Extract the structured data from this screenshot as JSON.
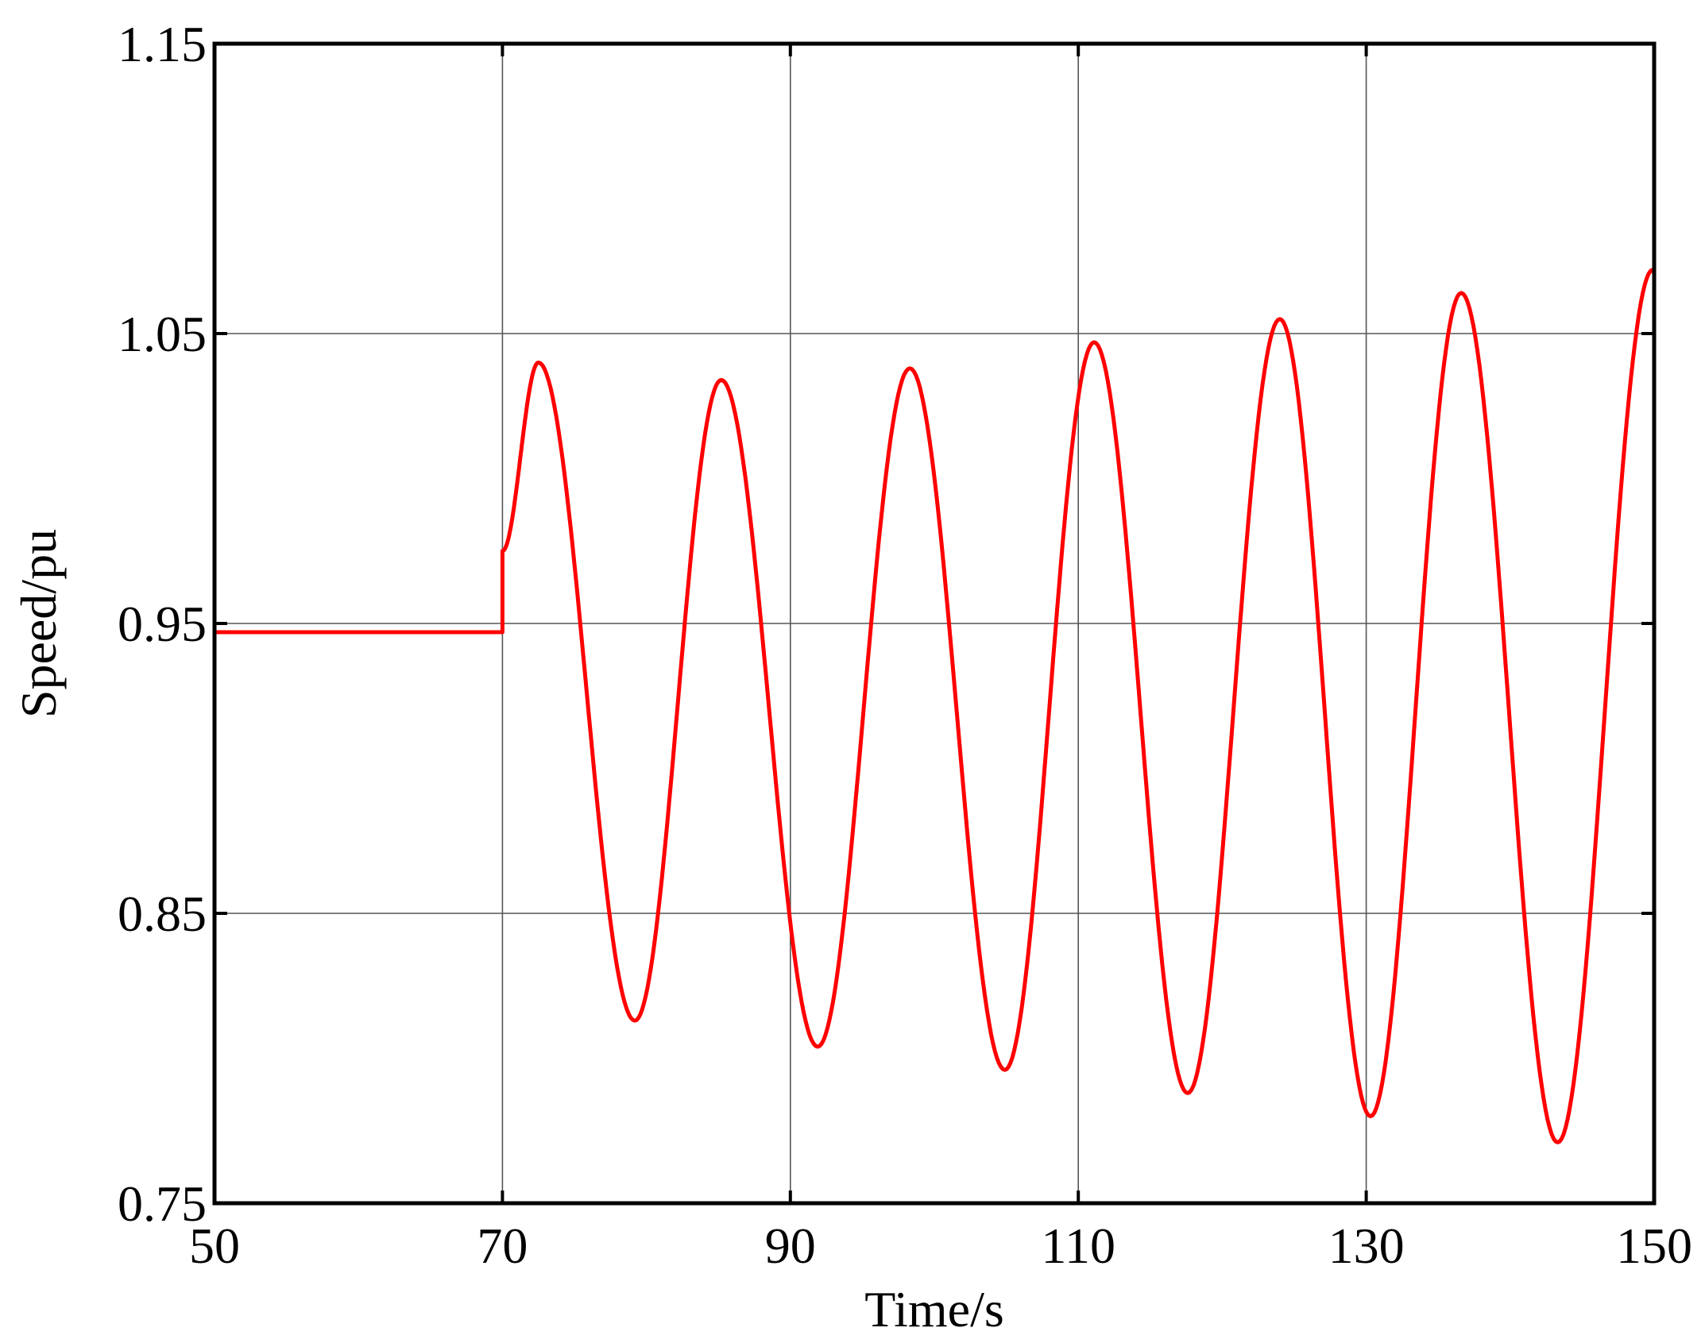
{
  "chart_data": {
    "type": "line",
    "xlabel": "Time/s",
    "ylabel": "Speed/pu",
    "xlim": [
      50,
      150
    ],
    "ylim": [
      0.75,
      1.15
    ],
    "xticks": [
      "50",
      "70",
      "90",
      "110",
      "130",
      "150"
    ],
    "yticks": [
      "0.75",
      "0.85",
      "0.95",
      "1.05",
      "1.15"
    ],
    "xtick_values": [
      50,
      70,
      90,
      110,
      130,
      150
    ],
    "ytick_values": [
      0.75,
      0.85,
      0.95,
      1.05,
      1.15
    ],
    "grid": true,
    "series": [
      {
        "color": "#ff0000",
        "x": [
          50,
          70,
          70,
          72.5,
          79.2,
          85.2,
          91.9,
          98.3,
          104.9,
          111.1,
          117.6,
          124.0,
          130.3,
          136.6,
          143.3,
          149.9,
          150
        ],
        "y": [
          0.947,
          0.947,
          0.975,
          1.04,
          0.813,
          1.034,
          0.804,
          1.038,
          0.796,
          1.047,
          0.788,
          1.055,
          0.78,
          1.064,
          0.771,
          1.072,
          1.071
        ]
      }
    ]
  }
}
